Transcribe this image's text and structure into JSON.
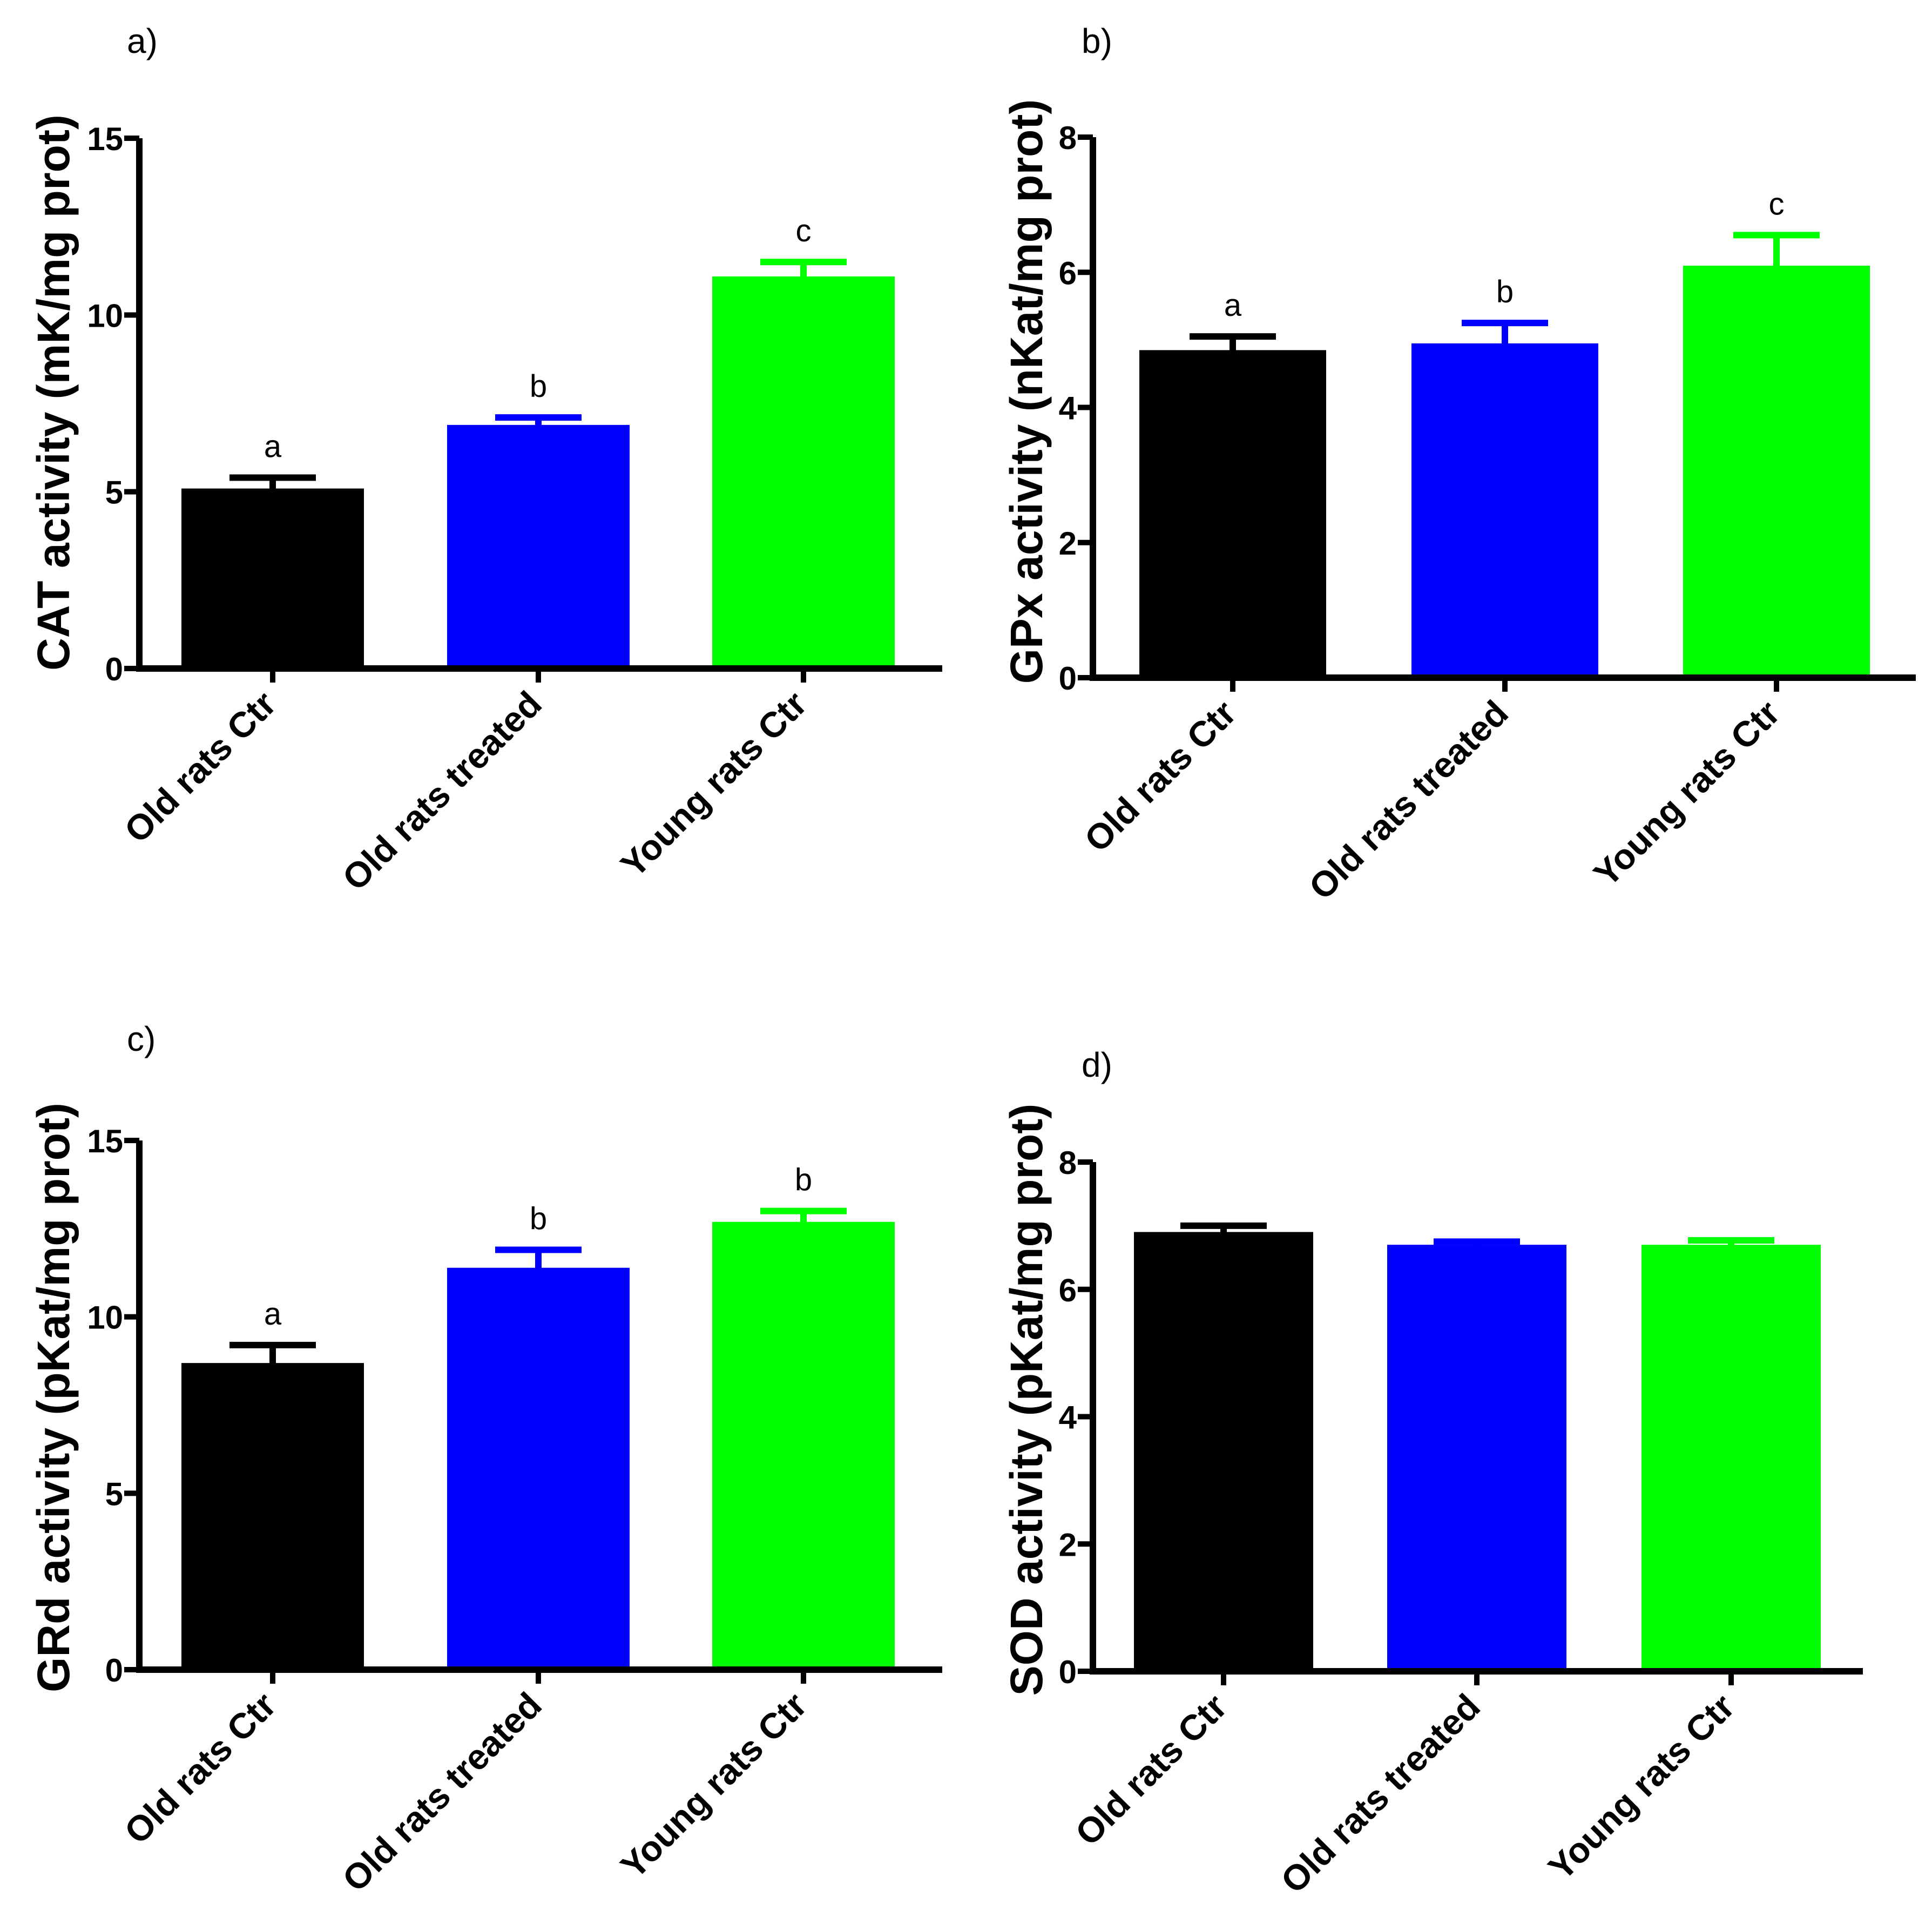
{
  "colors": {
    "old_ctr": "#000000",
    "old_treated": "#0000ff",
    "young_ctr": "#00ff00",
    "axis": "#000000"
  },
  "chart_data": [
    {
      "type": "bar",
      "panel": "a)",
      "ylabel": "CAT activity (mK/mg prot)",
      "xlabel": "",
      "ylim": [
        0,
        15
      ],
      "yticks": [
        0,
        5,
        10,
        15
      ],
      "categories": [
        "Old rats Ctr",
        "Old rats treated",
        "Young rats Ctr"
      ],
      "values": [
        5.0,
        6.8,
        11.0
      ],
      "errors": [
        0.4,
        0.3,
        0.5
      ],
      "significance": [
        "a",
        "b",
        "c"
      ]
    },
    {
      "type": "bar",
      "panel": "b)",
      "ylabel": "GPx activity (nKat/mg prot)",
      "xlabel": "",
      "ylim": [
        0,
        8
      ],
      "yticks": [
        0,
        2,
        4,
        6,
        8
      ],
      "categories": [
        "Old rats Ctr",
        "Old rats treated",
        "Young rats Ctr"
      ],
      "values": [
        4.8,
        4.9,
        6.05
      ],
      "errors": [
        0.25,
        0.35,
        0.5
      ],
      "significance": [
        "a",
        "b",
        "c"
      ]
    },
    {
      "type": "bar",
      "panel": "c)",
      "ylabel": "GRd activity (pKat/mg prot)",
      "xlabel": "",
      "ylim": [
        0,
        15
      ],
      "yticks": [
        0,
        5,
        10,
        15
      ],
      "categories": [
        "Old rats Ctr",
        "Old rats treated",
        "Young rats Ctr"
      ],
      "values": [
        8.6,
        11.3,
        12.6
      ],
      "errors": [
        0.6,
        0.6,
        0.4
      ],
      "significance": [
        "a",
        "b",
        "b"
      ]
    },
    {
      "type": "bar",
      "panel": "d)",
      "ylabel": "SOD activity (pKat/mg prot)",
      "xlabel": "",
      "ylim": [
        0,
        8
      ],
      "yticks": [
        0,
        2,
        4,
        6,
        8
      ],
      "categories": [
        "Old rats Ctr",
        "Old rats treated",
        "Young rats Ctr"
      ],
      "values": [
        6.85,
        6.65,
        6.65
      ],
      "errors": [
        0.15,
        0.1,
        0.12
      ],
      "significance": []
    }
  ]
}
